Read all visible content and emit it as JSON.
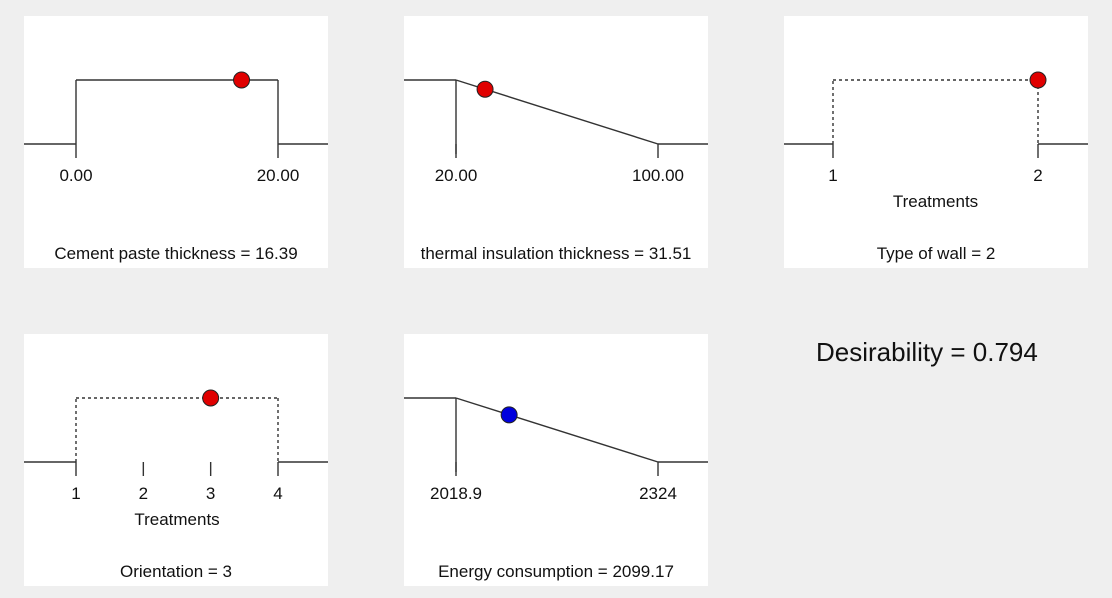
{
  "chart_data": [
    {
      "type": "line",
      "caption": "Cement paste thickness = 16.39",
      "axis_title": "",
      "low": 0,
      "high": 20,
      "current": 16.39,
      "tick_values": [
        0,
        20
      ],
      "tick_labels": [
        "0.00",
        "20.00"
      ],
      "shape": "range",
      "dashed": false,
      "point_color": "#e00000"
    },
    {
      "type": "line",
      "caption": "thermal insulation thickness = 31.51",
      "axis_title": "",
      "low": 20,
      "high": 100,
      "current": 31.51,
      "tick_values": [
        20,
        100
      ],
      "tick_labels": [
        "20.00",
        "100.00"
      ],
      "shape": "decreasing",
      "dashed": false,
      "point_color": "#e00000"
    },
    {
      "type": "line",
      "caption": "Type of wall = 2",
      "axis_title": "Treatments",
      "low": 1,
      "high": 2,
      "current": 2,
      "tick_values": [
        1,
        2
      ],
      "tick_labels": [
        "1",
        "2"
      ],
      "shape": "range",
      "dashed": true,
      "point_color": "#e00000"
    },
    {
      "type": "line",
      "caption": "Orientation = 3",
      "axis_title": "Treatments",
      "low": 1,
      "high": 4,
      "current": 3,
      "tick_values": [
        1,
        2,
        3,
        4
      ],
      "tick_labels": [
        "1",
        "2",
        "3",
        "4"
      ],
      "shape": "range",
      "dashed": true,
      "point_color": "#e00000"
    },
    {
      "type": "line",
      "caption": "Energy consumption = 2099.17",
      "axis_title": "",
      "low": 2018.9,
      "high": 2324,
      "current": 2099.17,
      "tick_values": [
        2018.9,
        2324
      ],
      "tick_labels": [
        "2018.9",
        "2324"
      ],
      "shape": "decreasing",
      "dashed": false,
      "point_color": "#0000dd"
    }
  ],
  "desirability": "Desirability = 0.794"
}
